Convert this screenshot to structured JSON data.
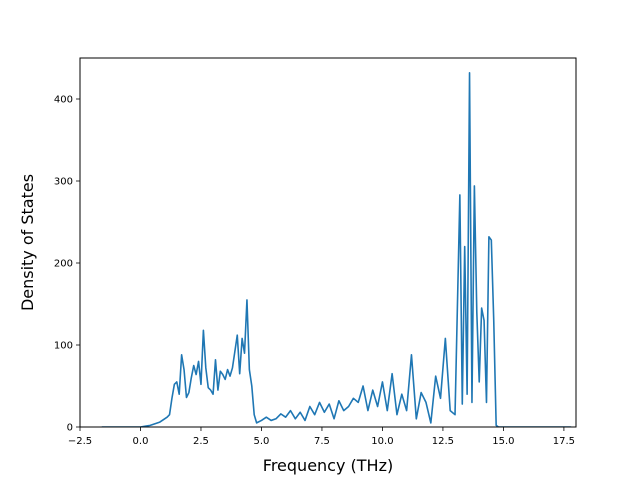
{
  "chart_data": {
    "type": "line",
    "xlabel": "Frequency (THz)",
    "ylabel": "Density of States",
    "xlim": [
      -2.5,
      18.0
    ],
    "ylim": [
      0,
      450
    ],
    "xticks": [
      -2.5,
      0.0,
      2.5,
      5.0,
      7.5,
      10.0,
      12.5,
      15.0,
      17.5
    ],
    "xtick_labels": [
      "−2.5",
      "0.0",
      "2.5",
      "5.0",
      "7.5",
      "10.0",
      "12.5",
      "15.0",
      "17.5"
    ],
    "yticks": [
      0,
      100,
      200,
      300,
      400
    ],
    "ytick_labels": [
      "0",
      "100",
      "200",
      "300",
      "400"
    ],
    "grid": false,
    "line_color": "#1f77b4",
    "series": [
      {
        "x": [
          -1.6,
          -1.0,
          -0.5,
          0.0,
          0.2,
          0.4,
          0.6,
          0.8,
          1.0,
          1.1,
          1.2,
          1.3,
          1.4,
          1.5,
          1.6,
          1.7,
          1.8,
          1.9,
          2.0,
          2.1,
          2.2,
          2.3,
          2.4,
          2.5,
          2.6,
          2.7,
          2.8,
          2.9,
          3.0,
          3.1,
          3.2,
          3.3,
          3.4,
          3.5,
          3.6,
          3.7,
          3.8,
          3.9,
          4.0,
          4.1,
          4.2,
          4.3,
          4.4,
          4.5,
          4.6,
          4.7,
          4.8,
          5.0,
          5.2,
          5.4,
          5.6,
          5.8,
          6.0,
          6.2,
          6.4,
          6.6,
          6.8,
          7.0,
          7.2,
          7.4,
          7.6,
          7.8,
          8.0,
          8.2,
          8.4,
          8.6,
          8.8,
          9.0,
          9.2,
          9.4,
          9.6,
          9.8,
          10.0,
          10.2,
          10.4,
          10.6,
          10.8,
          11.0,
          11.2,
          11.4,
          11.6,
          11.8,
          12.0,
          12.2,
          12.4,
          12.6,
          12.8,
          13.0,
          13.2,
          13.3,
          13.4,
          13.5,
          13.6,
          13.7,
          13.8,
          13.9,
          14.0,
          14.1,
          14.2,
          14.3,
          14.4,
          14.5,
          14.6,
          14.7,
          14.8,
          14.9,
          15.2,
          16.0,
          17.0,
          17.8
        ],
        "y": [
          0,
          0,
          0,
          0,
          1,
          2,
          4,
          6,
          10,
          12,
          15,
          35,
          52,
          55,
          40,
          88,
          70,
          36,
          42,
          60,
          75,
          64,
          80,
          52,
          118,
          72,
          48,
          45,
          40,
          82,
          45,
          68,
          64,
          58,
          70,
          62,
          72,
          92,
          112,
          65,
          108,
          90,
          155,
          70,
          50,
          15,
          5,
          8,
          12,
          8,
          10,
          16,
          12,
          20,
          10,
          18,
          8,
          25,
          15,
          30,
          18,
          28,
          10,
          32,
          20,
          25,
          35,
          30,
          50,
          20,
          45,
          25,
          55,
          20,
          65,
          15,
          40,
          20,
          88,
          10,
          42,
          30,
          5,
          62,
          35,
          108,
          20,
          15,
          283,
          28,
          220,
          40,
          432,
          30,
          294,
          140,
          55,
          145,
          130,
          30,
          232,
          228,
          130,
          2,
          0,
          0,
          0,
          0,
          0,
          0
        ]
      }
    ]
  }
}
